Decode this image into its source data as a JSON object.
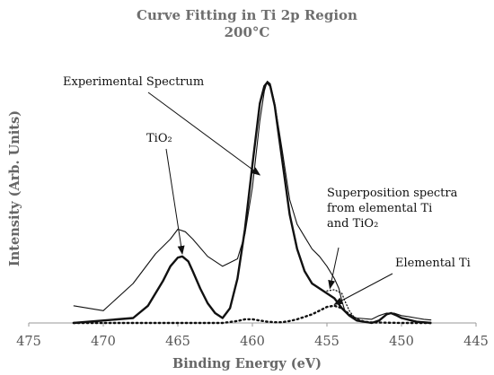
{
  "chart_data": {
    "type": "line",
    "title": "Curve Fitting in Ti 2p Region",
    "subtitle": "200°C",
    "xlabel": "Binding Energy (eV)",
    "ylabel": "Intensity (Arb. Units)",
    "xlim": [
      475,
      445
    ],
    "x_reversed": true,
    "xticks": [
      "475",
      "470",
      "465",
      "460",
      "455",
      "450",
      "445"
    ],
    "ylim": [
      0,
      100
    ],
    "y_ticks_shown": false,
    "grid": false,
    "legend": "none",
    "series": [
      {
        "name": "Experimental Spectrum",
        "style": "thin-solid",
        "x": [
          472.0,
          470.0,
          468.0,
          466.5,
          465.5,
          465.0,
          464.5,
          464.0,
          463.0,
          462.0,
          461.0,
          460.5,
          460.0,
          459.5,
          459.2,
          459.0,
          458.8,
          458.5,
          458.0,
          457.5,
          457.0,
          456.5,
          456.0,
          455.5,
          455.0,
          454.5,
          454.2,
          454.0,
          453.8,
          453.5,
          453.0,
          452.0,
          451.5,
          451.0,
          450.8,
          450.5,
          450.0,
          449.5,
          449.0,
          448.5,
          448.0
        ],
        "y": [
          7,
          5,
          16,
          28,
          34,
          38,
          37,
          34,
          27,
          23,
          26,
          36,
          55,
          82,
          94,
          98,
          97,
          89,
          70,
          50,
          40,
          35,
          30,
          27,
          23,
          18,
          14,
          9,
          5,
          3,
          2,
          1.5,
          3,
          4,
          4,
          4,
          3,
          2.5,
          2,
          1.5,
          1.2
        ]
      },
      {
        "name": "TiO₂",
        "style": "thick-solid",
        "x": [
          472.0,
          468.0,
          467.0,
          466.0,
          465.5,
          465.0,
          464.7,
          464.3,
          464.0,
          463.5,
          463.0,
          462.5,
          462.0,
          461.5,
          461.0,
          460.5,
          460.0,
          459.5,
          459.2,
          459.0,
          458.8,
          458.5,
          458.0,
          457.5,
          457.0,
          456.5,
          456.0,
          455.5,
          455.0,
          454.5,
          454.0,
          453.5,
          453.0,
          452.0,
          451.5,
          451.0,
          450.7,
          450.3,
          450.0,
          449.0,
          448.0
        ],
        "y": [
          0,
          2,
          7,
          17,
          23,
          26.5,
          27,
          25,
          21,
          14,
          8,
          4,
          2,
          6,
          18,
          38,
          64,
          89,
          96,
          97.5,
          96,
          88,
          66,
          44,
          30,
          21,
          16,
          14,
          12,
          10,
          6,
          3,
          1,
          0,
          1,
          3.5,
          4,
          3,
          2,
          0.5,
          0
        ]
      },
      {
        "name": "Elemental Ti",
        "style": "thick-dotted",
        "x": [
          472.0,
          462.0,
          461.0,
          460.5,
          460.0,
          459.5,
          459.0,
          458.5,
          458.0,
          457.5,
          457.0,
          456.0,
          455.5,
          455.0,
          454.5,
          454.0,
          453.5,
          453.0,
          452.5,
          452.0,
          451.0,
          450.0,
          448.0
        ],
        "y": [
          0,
          0,
          0.8,
          1.5,
          1.5,
          1,
          0.5,
          0.3,
          0.3,
          0.8,
          1.5,
          3.5,
          5,
          6.5,
          7,
          6,
          3.5,
          1.5,
          0.5,
          0.2,
          0.1,
          0,
          0
        ]
      },
      {
        "name": "Superposition spectra from elemental Ti and TiO₂",
        "style": "thin-dotted",
        "x": [
          455.0,
          454.5,
          454.0,
          453.8,
          453.5,
          453.2,
          453.0
        ],
        "y": [
          13,
          13.5,
          12,
          9,
          5,
          2.5,
          1
        ]
      }
    ],
    "annotations": [
      {
        "id": "exp",
        "text": "Experimental Spectrum",
        "arrow_to": [
          459.5,
          60
        ]
      },
      {
        "id": "tio2",
        "text": "TiO₂",
        "arrow_to": [
          464.7,
          28
        ]
      },
      {
        "id": "sup",
        "lines": [
          "Superposition spectra",
          "from elemental Ti",
          "and TiO₂"
        ],
        "arrow_to": [
          454.8,
          14
        ]
      },
      {
        "id": "elem",
        "text": "Elemental Ti",
        "arrow_to": [
          454.5,
          7.5
        ]
      }
    ]
  }
}
